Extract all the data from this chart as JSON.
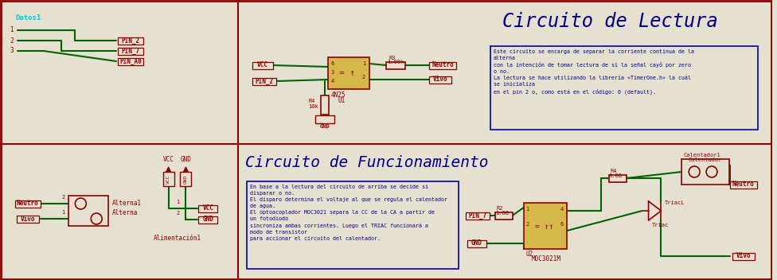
{
  "bg_color": "#e5e0d0",
  "border_color": "#8b0000",
  "wire_color": "#006400",
  "component_color": "#8b0000",
  "title_color": "#00008b",
  "ic_fill": "#d4b84a",
  "title1": "Circuito de Lectura",
  "title2": "Circuito de Funcionamiento",
  "desc1_lines": [
    "Este circuito se encarga de separar la corriente continua de la",
    "alterna",
    "con la intención de tomar lectura de si la señal cayó por zero",
    "o no.",
    "La lectura se hace utilizando la librería «TimerOne.h» la cuál",
    "se inicializa",
    "en el pin 2 o, como está en el código: 0 (default)."
  ],
  "desc2_lines": [
    "En base a la lectura del circuito de arriba se decide si",
    "disparar o no.",
    "El disparo determina el voltaje al que se regula el calentador",
    "de agua.",
    "El optoacoplador MOC3021 separa la CC de la CA a partir de",
    "un fotodiodo",
    "sincroniza ambas corrientes. Luego el TRIAC funcionará a",
    "modo de transistor",
    "para accionar el circuito del calentador."
  ],
  "datos_label": "Datos1",
  "alimentacion_label": "Alimentación1",
  "alterna1_label": "Alterna1",
  "alterna_label": "Alterna"
}
